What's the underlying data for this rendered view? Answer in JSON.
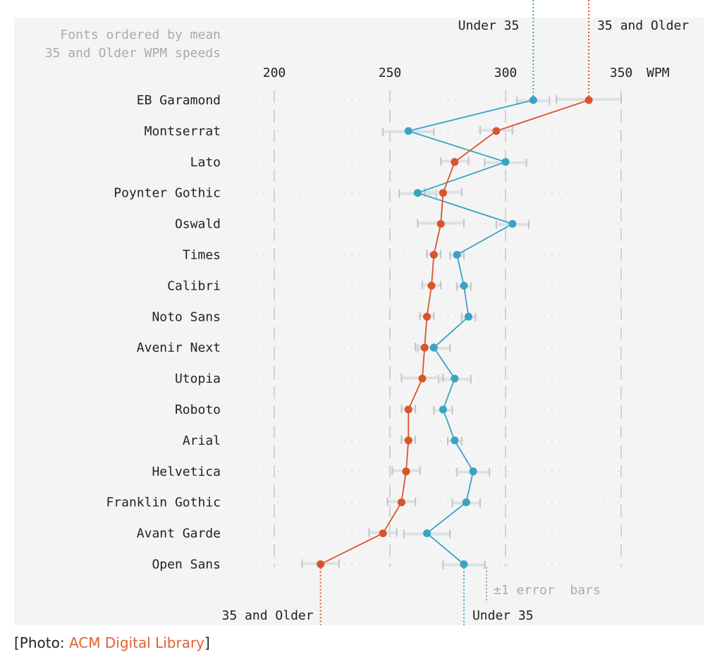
{
  "chart_data": {
    "type": "scatter",
    "title": "Fonts ordered by mean 35 and Older WPM speeds",
    "title_lines": [
      "Fonts ordered by mean",
      "35 and Older WPM speeds"
    ],
    "xlabel": "WPM",
    "xlim": [
      200,
      350
    ],
    "xticks": [
      200,
      250,
      300,
      350
    ],
    "grid": true,
    "categories": [
      "EB Garamond",
      "Montserrat",
      "Lato",
      "Poynter Gothic",
      "Oswald",
      "Times",
      "Calibri",
      "Noto Sans",
      "Avenir Next",
      "Utopia",
      "Roboto",
      "Arial",
      "Helvetica",
      "Franklin Gothic",
      "Avant Garde",
      "Open Sans"
    ],
    "series": [
      {
        "name": "Under 35",
        "color": "#3aa3c4",
        "values": [
          312,
          258,
          300,
          262,
          303,
          279,
          282,
          284,
          269,
          278,
          273,
          278,
          286,
          283,
          266,
          282
        ],
        "errors": [
          7,
          11,
          9,
          8,
          7,
          3,
          3,
          3,
          7,
          7,
          4,
          3,
          7,
          6,
          10,
          9
        ]
      },
      {
        "name": "35 and Older",
        "color": "#d9542b",
        "values": [
          336,
          296,
          278,
          273,
          272,
          269,
          268,
          266,
          265,
          264,
          258,
          258,
          257,
          255,
          247,
          220
        ],
        "errors": [
          14,
          7,
          6,
          8,
          10,
          3,
          4,
          3,
          4,
          9,
          3,
          3,
          6,
          6,
          6,
          8
        ]
      }
    ],
    "annotation": "±1 error  bars"
  },
  "caption": {
    "prefix": "[Photo: ",
    "source": "ACM Digital Library",
    "suffix": "]"
  }
}
